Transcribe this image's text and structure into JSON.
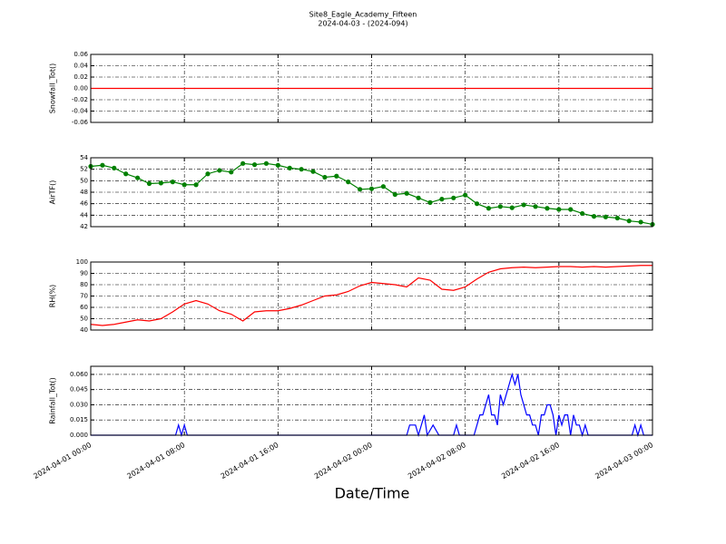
{
  "chart_data": [
    {
      "type": "line",
      "title": "Site8_Eagle_Academy_Fifteen",
      "subtitle": "2024-04-03 - (2024-094)",
      "ylabel": "Snowfall_Tot()",
      "color": "#ff0000",
      "ylim": [
        -0.06,
        0.06
      ],
      "yticks": [
        -0.06,
        -0.04,
        -0.02,
        {
          "value": 0,
          "label": "0.00"
        },
        0.02,
        0.04,
        0.06
      ],
      "x": [
        "2024-04-01 00:00",
        "2024-04-01 08:00",
        "2024-04-01 16:00",
        "2024-04-02 00:00",
        "2024-04-02 08:00",
        "2024-04-02 16:00",
        "2024-04-03 00:00"
      ],
      "values": [
        0,
        0,
        0,
        0,
        0,
        0,
        0
      ]
    },
    {
      "type": "line",
      "ylabel": "AirTF()",
      "color": "#008000",
      "markers": true,
      "ylim": [
        42,
        54
      ],
      "yticks": [
        42,
        44,
        46,
        48,
        50,
        52,
        54
      ],
      "x": [
        "2024-04-01 00:00",
        "2024-04-01 01:00",
        "2024-04-01 02:00",
        "2024-04-01 03:00",
        "2024-04-01 04:00",
        "2024-04-01 05:00",
        "2024-04-01 06:00",
        "2024-04-01 07:00",
        "2024-04-01 08:00",
        "2024-04-01 09:00",
        "2024-04-01 10:00",
        "2024-04-01 11:00",
        "2024-04-01 12:00",
        "2024-04-01 13:00",
        "2024-04-01 14:00",
        "2024-04-01 15:00",
        "2024-04-01 16:00",
        "2024-04-01 17:00",
        "2024-04-01 18:00",
        "2024-04-01 19:00",
        "2024-04-01 20:00",
        "2024-04-01 21:00",
        "2024-04-01 22:00",
        "2024-04-01 23:00",
        "2024-04-02 00:00",
        "2024-04-02 01:00",
        "2024-04-02 02:00",
        "2024-04-02 03:00",
        "2024-04-02 04:00",
        "2024-04-02 05:00",
        "2024-04-02 06:00",
        "2024-04-02 07:00",
        "2024-04-02 08:00",
        "2024-04-02 09:00",
        "2024-04-02 10:00",
        "2024-04-02 11:00",
        "2024-04-02 12:00",
        "2024-04-02 13:00",
        "2024-04-02 14:00",
        "2024-04-02 15:00",
        "2024-04-02 16:00",
        "2024-04-02 17:00",
        "2024-04-02 18:00",
        "2024-04-02 19:00",
        "2024-04-02 20:00",
        "2024-04-02 21:00",
        "2024-04-02 22:00",
        "2024-04-02 23:00",
        "2024-04-03 00:00"
      ],
      "values": [
        52.5,
        52.7,
        52.2,
        51.2,
        50.5,
        49.5,
        49.6,
        49.8,
        49.3,
        49.3,
        51.2,
        51.8,
        51.5,
        53,
        52.8,
        53,
        52.7,
        52.2,
        52,
        51.6,
        50.6,
        50.8,
        49.8,
        48.5,
        48.6,
        49,
        47.6,
        47.8,
        47,
        46.2,
        46.8,
        47,
        47.5,
        46,
        45.2,
        45.5,
        45.3,
        45.8,
        45.5,
        45.2,
        45,
        45,
        44.3,
        43.8,
        43.7,
        43.5,
        43,
        42.8,
        42.4
      ]
    },
    {
      "type": "line",
      "ylabel": "RH(%)",
      "color": "#ff0000",
      "ylim": [
        40,
        100
      ],
      "yticks": [
        40,
        50,
        60,
        70,
        80,
        90,
        100
      ],
      "x": [
        "2024-04-01 00:00",
        "2024-04-01 01:00",
        "2024-04-01 02:00",
        "2024-04-01 03:00",
        "2024-04-01 04:00",
        "2024-04-01 05:00",
        "2024-04-01 06:00",
        "2024-04-01 07:00",
        "2024-04-01 08:00",
        "2024-04-01 09:00",
        "2024-04-01 10:00",
        "2024-04-01 11:00",
        "2024-04-01 12:00",
        "2024-04-01 13:00",
        "2024-04-01 14:00",
        "2024-04-01 15:00",
        "2024-04-01 16:00",
        "2024-04-01 17:00",
        "2024-04-01 18:00",
        "2024-04-01 19:00",
        "2024-04-01 20:00",
        "2024-04-01 21:00",
        "2024-04-01 22:00",
        "2024-04-01 23:00",
        "2024-04-02 00:00",
        "2024-04-02 01:00",
        "2024-04-02 02:00",
        "2024-04-02 03:00",
        "2024-04-02 04:00",
        "2024-04-02 05:00",
        "2024-04-02 06:00",
        "2024-04-02 07:00",
        "2024-04-02 08:00",
        "2024-04-02 09:00",
        "2024-04-02 10:00",
        "2024-04-02 11:00",
        "2024-04-02 12:00",
        "2024-04-02 13:00",
        "2024-04-02 14:00",
        "2024-04-02 15:00",
        "2024-04-02 16:00",
        "2024-04-02 17:00",
        "2024-04-02 18:00",
        "2024-04-02 19:00",
        "2024-04-02 20:00",
        "2024-04-02 21:00",
        "2024-04-02 22:00",
        "2024-04-02 23:00",
        "2024-04-03 00:00"
      ],
      "values": [
        45,
        44,
        45,
        47,
        49,
        48,
        50,
        56,
        63,
        66,
        63,
        57,
        54,
        48,
        56,
        57,
        57,
        59,
        62,
        66,
        70,
        71,
        74,
        79,
        82,
        81,
        80,
        78,
        86,
        84,
        76,
        75,
        78,
        85,
        91,
        94,
        95,
        95.5,
        95,
        95.5,
        96,
        96,
        95.5,
        96,
        95.5,
        96,
        96.5,
        97,
        97
      ]
    },
    {
      "type": "line",
      "ylabel": "Rainfall_Tot()",
      "xlabel": "Date/Time",
      "color": "#0000ff",
      "ylim": [
        0,
        0.068
      ],
      "yticks": [
        {
          "value": 0,
          "label": "0.000"
        },
        {
          "value": 0.015,
          "label": "0.015"
        },
        {
          "value": 0.03,
          "label": "0.030"
        },
        {
          "value": 0.045,
          "label": "0.045"
        },
        {
          "value": 0.06,
          "label": "0.060"
        }
      ],
      "xlim": [
        "2024-04-01 00:00",
        "2024-04-03 00:00"
      ],
      "xticks": [
        "2024-04-01 00:00",
        "2024-04-01 08:00",
        "2024-04-01 16:00",
        "2024-04-02 00:00",
        "2024-04-02 08:00",
        "2024-04-02 16:00",
        "2024-04-03 00:00"
      ],
      "x": [
        "2024-04-01 00:00",
        "2024-04-01 07:15",
        "2024-04-01 07:30",
        "2024-04-01 07:45",
        "2024-04-01 08:00",
        "2024-04-01 08:15",
        "2024-04-02 03:00",
        "2024-04-02 03:15",
        "2024-04-02 03:45",
        "2024-04-02 04:00",
        "2024-04-02 04:30",
        "2024-04-02 04:45",
        "2024-04-02 05:15",
        "2024-04-02 05:45",
        "2024-04-02 07:00",
        "2024-04-02 07:15",
        "2024-04-02 07:30",
        "2024-04-02 08:45",
        "2024-04-02 09:15",
        "2024-04-02 09:30",
        "2024-04-02 10:00",
        "2024-04-02 10:15",
        "2024-04-02 10:30",
        "2024-04-02 10:45",
        "2024-04-02 11:00",
        "2024-04-02 11:15",
        "2024-04-02 11:30",
        "2024-04-02 11:45",
        "2024-04-02 12:00",
        "2024-04-02 12:15",
        "2024-04-02 12:30",
        "2024-04-02 12:45",
        "2024-04-02 13:00",
        "2024-04-02 13:15",
        "2024-04-02 13:30",
        "2024-04-02 13:45",
        "2024-04-02 14:00",
        "2024-04-02 14:15",
        "2024-04-02 14:30",
        "2024-04-02 14:45",
        "2024-04-02 15:00",
        "2024-04-02 15:15",
        "2024-04-02 15:30",
        "2024-04-02 15:45",
        "2024-04-02 16:00",
        "2024-04-02 16:15",
        "2024-04-02 16:30",
        "2024-04-02 16:45",
        "2024-04-02 17:00",
        "2024-04-02 17:15",
        "2024-04-02 17:30",
        "2024-04-02 17:45",
        "2024-04-02 18:00",
        "2024-04-02 18:15",
        "2024-04-02 18:30",
        "2024-04-02 22:15",
        "2024-04-02 22:30",
        "2024-04-02 22:45",
        "2024-04-02 23:00",
        "2024-04-02 23:15",
        "2024-04-03 00:00"
      ],
      "values": [
        0,
        0,
        0.01,
        0,
        0.01,
        0,
        0,
        0.01,
        0.01,
        0,
        0.02,
        0,
        0.01,
        0,
        0,
        0.01,
        0,
        0,
        0.02,
        0.02,
        0.04,
        0.02,
        0.02,
        0.01,
        0.04,
        0.03,
        0.04,
        0.05,
        0.06,
        0.05,
        0.06,
        0.04,
        0.03,
        0.02,
        0.02,
        0.01,
        0.01,
        0,
        0.02,
        0.02,
        0.03,
        0.03,
        0.02,
        0,
        0.02,
        0.01,
        0.02,
        0.02,
        0,
        0.02,
        0.01,
        0.01,
        0,
        0.01,
        0,
        0,
        0.01,
        0,
        0.01,
        0,
        0
      ]
    }
  ]
}
